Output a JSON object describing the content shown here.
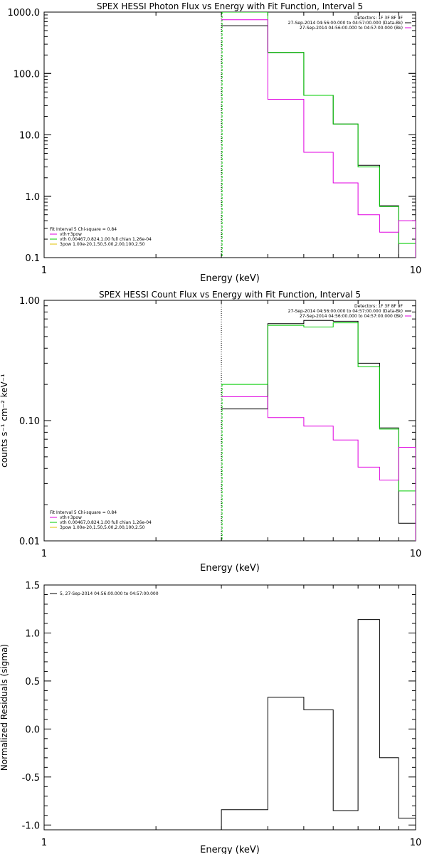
{
  "chart_data": [
    {
      "type": "line",
      "title": "SPEX HESSI Photon Flux vs Energy with Fit Function, Interval 5",
      "xlabel": "Energy (keV)",
      "ylabel": "",
      "xscale": "log",
      "yscale": "log",
      "xlim": [
        1,
        10
      ],
      "ylim": [
        0.1,
        1000
      ],
      "x_ticks": [
        "1",
        "10"
      ],
      "y_ticks": [
        "0.1",
        "1.0",
        "10.0",
        "100.0",
        "1000.0"
      ],
      "y_tick_values": [
        0.1,
        1,
        10,
        100,
        1000
      ],
      "marker_x": 3.0,
      "x_edges": [
        3.0,
        4.0,
        5.0,
        6.0,
        7.0,
        8.0,
        9.0,
        10.0
      ],
      "series": [
        {
          "color": "#000000",
          "values": [
            600,
            220,
            44,
            15,
            3.2,
            0.7,
            0.1
          ]
        },
        {
          "color": "#00cc00",
          "values": [
            1000,
            220,
            44,
            15,
            3.0,
            0.68,
            0.17
          ]
        },
        {
          "color": "#e000e0",
          "values": [
            750,
            38,
            5.2,
            1.65,
            0.5,
            0.26,
            0.4
          ]
        }
      ],
      "legend_right": {
        "lines": [
          {
            "text": "Detectors: 1F 3F 8F 9F",
            "color": "#000000"
          },
          {
            "text": "27-Sep-2014 04:56:00.000 to 04:57:00.000 (Data-Bk)",
            "color": "#000000"
          },
          {
            "text": "27-Sep-2014 04:56:00.000 to 04:57:00.000 (Bk)",
            "color": "#e000e0"
          }
        ],
        "placement": "top-right"
      },
      "legend_left": {
        "header": "Fit Interval 5   Chi-square = 0.84",
        "lines": [
          {
            "text": "vth+3pow",
            "color": "#e000e0"
          },
          {
            "text": "vth 0.00467,0.824,1.00  full chian 1.26e-04",
            "color": "#00cc00"
          },
          {
            "text": "3pow 1.00e-20,1.50,5.00,2.00,100,2.50",
            "color": "#e0c000"
          }
        ],
        "placement": "bottom-left"
      }
    },
    {
      "type": "line",
      "title": "SPEX HESSI Count Flux vs Energy with Fit Function, Interval 5",
      "xlabel": "Energy (keV)",
      "ylabel": "counts s⁻¹ cm⁻² keV⁻¹",
      "xscale": "log",
      "yscale": "log",
      "xlim": [
        1,
        10
      ],
      "ylim": [
        0.01,
        1
      ],
      "x_ticks": [
        "1",
        "10"
      ],
      "y_ticks": [
        "0.01",
        "0.10",
        "1.00"
      ],
      "y_tick_values": [
        0.01,
        0.1,
        1
      ],
      "marker_x": 3.0,
      "x_edges": [
        3.0,
        4.0,
        5.0,
        6.0,
        7.0,
        8.0,
        9.0,
        10.0
      ],
      "series": [
        {
          "color": "#000000",
          "values": [
            0.125,
            0.64,
            0.68,
            0.67,
            0.3,
            0.087,
            0.014
          ]
        },
        {
          "color": "#00cc00",
          "values": [
            0.2,
            0.62,
            0.6,
            0.65,
            0.28,
            0.085,
            0.026
          ]
        },
        {
          "color": "#e000e0",
          "values": [
            0.158,
            0.106,
            0.09,
            0.069,
            0.041,
            0.032,
            0.06
          ]
        }
      ],
      "legend_right": {
        "lines": [
          {
            "text": "Detectors: 1F 3F 8F 9F",
            "color": "#000000"
          },
          {
            "text": "27-Sep-2014 04:56:00.000 to 04:57:00.000 (Data-Bk)",
            "color": "#000000"
          },
          {
            "text": "27-Sep-2014 04:56:00.000 to 04:57:00.000 (Bk)",
            "color": "#e000e0"
          }
        ],
        "placement": "top-right"
      },
      "legend_left": {
        "header": "Fit Interval 5   Chi-square = 0.84",
        "lines": [
          {
            "text": "vth+3pow",
            "color": "#e000e0"
          },
          {
            "text": "vth 0.00467,0.824,1.00  full chian 1.26e-04",
            "color": "#00cc00"
          },
          {
            "text": "3pow 1.00e-20,1.50,5.00,2.00,100,2.50",
            "color": "#e0c000"
          }
        ],
        "placement": "bottom-left"
      }
    },
    {
      "type": "line",
      "title": "",
      "xlabel": "Energy (keV)",
      "ylabel": "Normalized Residuals (sigma)",
      "xscale": "log",
      "yscale": "linear",
      "xlim": [
        1,
        10
      ],
      "ylim": [
        -1.05,
        1.5
      ],
      "x_ticks": [
        "1",
        "10"
      ],
      "y_ticks": [
        "-1.0",
        "-0.5",
        "0.0",
        "0.5",
        "1.0",
        "1.5"
      ],
      "y_tick_values": [
        -1.0,
        -0.5,
        0.0,
        0.5,
        1.0,
        1.5
      ],
      "x_edges": [
        3.0,
        4.0,
        5.0,
        6.0,
        7.0,
        8.0,
        9.0,
        10.0
      ],
      "series": [
        {
          "color": "#000000",
          "values": [
            -0.84,
            0.33,
            0.2,
            -0.85,
            1.14,
            -0.3,
            -0.93
          ]
        }
      ],
      "legend_right": null,
      "legend_left": {
        "header": "",
        "lines": [
          {
            "text": "5, 27-Sep-2014 04:56:00.000 to 04:57:00.000",
            "color": "#000000"
          }
        ],
        "placement": "top-left"
      }
    }
  ]
}
